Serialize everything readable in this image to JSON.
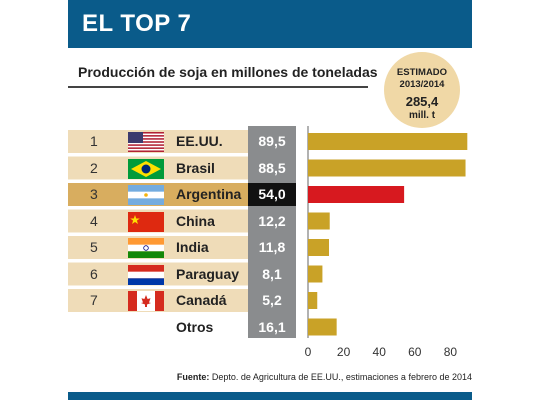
{
  "header": {
    "title": "EL TOP 7"
  },
  "subtitle": "Producción de soja en millones de toneladas",
  "badge": {
    "line1": "ESTIMADO",
    "line2": "2013/2014",
    "value": "285,4",
    "unit": "mill. t"
  },
  "colors": {
    "header": "#0a5b8a",
    "bar": "#c9a227",
    "highlight_bar": "#d7191f",
    "row_light": "#efdcb8",
    "row_highlight": "#d8ad5f",
    "value_column": "#8a8c8e",
    "badge": "#f0d8a6"
  },
  "rows": [
    {
      "rank": "1",
      "country": "EE.UU.",
      "value_label": "89,5",
      "flag": "flag-usa-icon"
    },
    {
      "rank": "2",
      "country": "Brasil",
      "value_label": "88,5",
      "flag": "flag-brazil-icon"
    },
    {
      "rank": "3",
      "country": "Argentina",
      "value_label": "54,0",
      "flag": "flag-argentina-icon",
      "highlight": true
    },
    {
      "rank": "4",
      "country": "China",
      "value_label": "12,2",
      "flag": "flag-china-icon"
    },
    {
      "rank": "5",
      "country": "India",
      "value_label": "11,8",
      "flag": "flag-india-icon"
    },
    {
      "rank": "6",
      "country": "Paraguay",
      "value_label": "8,1",
      "flag": "flag-paraguay-icon"
    },
    {
      "rank": "7",
      "country": "Canadá",
      "value_label": "5,2",
      "flag": "flag-canada-icon"
    },
    {
      "rank": "",
      "country": "Otros",
      "value_label": "16,1",
      "flag": ""
    }
  ],
  "chart_data": {
    "type": "bar",
    "orientation": "horizontal",
    "categories": [
      "EE.UU.",
      "Brasil",
      "Argentina",
      "China",
      "India",
      "Paraguay",
      "Canadá",
      "Otros"
    ],
    "values": [
      89.5,
      88.5,
      54.0,
      12.2,
      11.8,
      8.1,
      5.2,
      16.1
    ],
    "highlight_index": 2,
    "title": "Producción de soja en millones de toneladas",
    "xlim": [
      0,
      90
    ],
    "x_ticks": [
      0,
      20,
      40,
      60,
      80
    ],
    "grid": false
  },
  "footer": {
    "source_label": "Fuente:",
    "source_text": " Depto. de Agricultura de EE.UU., estimaciones a febrero de 2014"
  }
}
